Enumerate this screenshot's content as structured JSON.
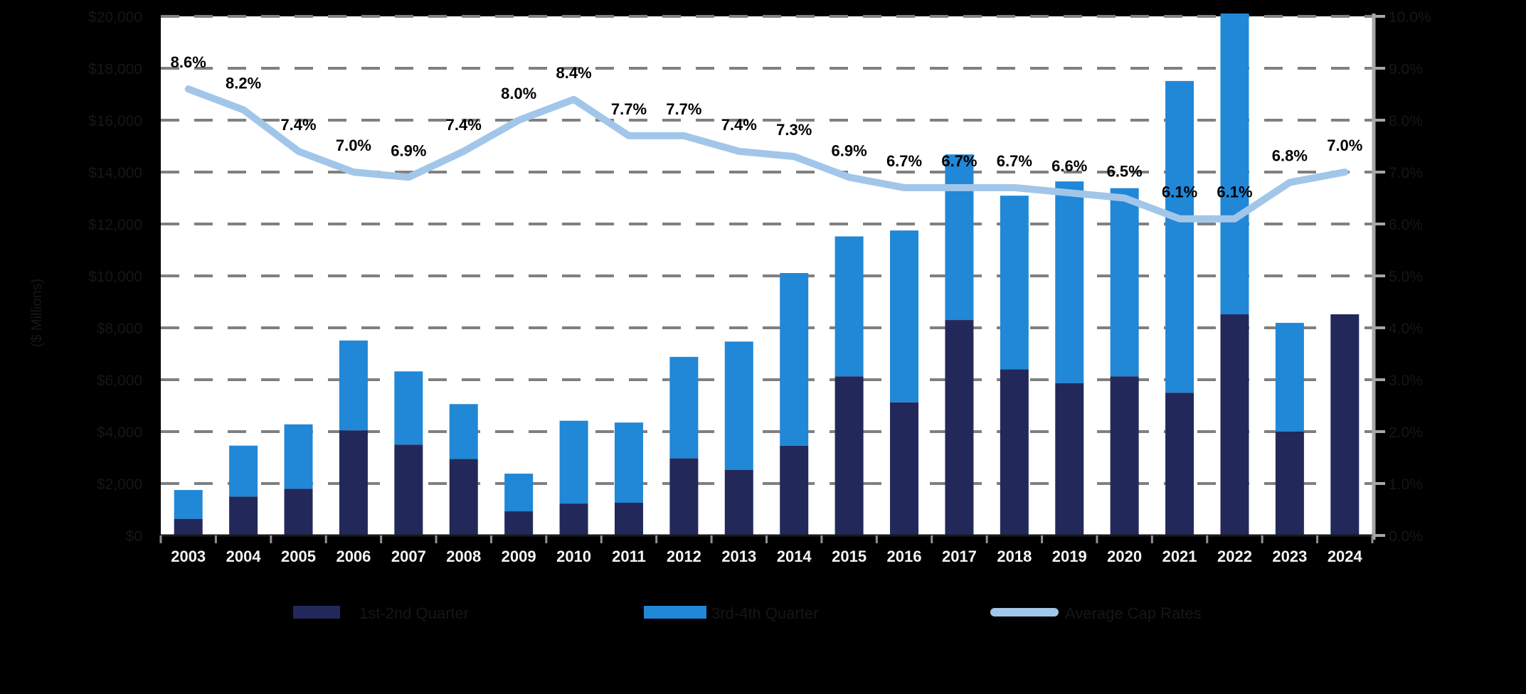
{
  "colors": {
    "page_bg": "#000000",
    "plot_bg": "#ffffff",
    "navy": "#22295a",
    "blue": "#2187d7",
    "light_blue": "#a2c6e9",
    "gridline": "#808080",
    "x_axis_line": "#1a1a1a",
    "right_axis_line": "#a6a6a6",
    "category_tick": "#909090",
    "year_label": "#f5f5f5",
    "data_label": "#000000",
    "muted_label": "#161616"
  },
  "chart_data": {
    "type": "bar+line",
    "title": "",
    "categories": [
      "2003",
      "2004",
      "2005",
      "2006",
      "2007",
      "2008",
      "2009",
      "2010",
      "2011",
      "2012",
      "2013",
      "2014",
      "2015",
      "2016",
      "2017",
      "2018",
      "2019",
      "2020",
      "2021",
      "2022",
      "2023",
      "2024"
    ],
    "series": [
      {
        "name": "1st-2nd Quarter",
        "type": "bar",
        "stack": "volume",
        "color_key": "navy",
        "values": [
          640,
          1500,
          1800,
          4050,
          3500,
          2950,
          930,
          1230,
          1260,
          2970,
          2530,
          3460,
          6130,
          5130,
          8300,
          6400,
          5870,
          6130,
          5500,
          8520,
          4000,
          8520
        ]
      },
      {
        "name": "3rd-4th Quarter",
        "type": "bar",
        "stack": "volume",
        "color_key": "blue",
        "values": [
          1110,
          1960,
          2480,
          3460,
          2820,
          2110,
          1450,
          3190,
          3090,
          3910,
          4940,
          6650,
          5390,
          6620,
          6380,
          6690,
          7770,
          7250,
          12010,
          11590,
          4190,
          0
        ]
      },
      {
        "name": "Average Cap Rates",
        "type": "line",
        "axis": "right",
        "color_key": "light_blue",
        "values": [
          8.6,
          8.2,
          7.4,
          7.0,
          6.9,
          7.4,
          8.0,
          8.4,
          7.7,
          7.7,
          7.4,
          7.3,
          6.9,
          6.7,
          6.7,
          6.7,
          6.6,
          6.5,
          6.1,
          6.1,
          6.8,
          7.0
        ],
        "labels": [
          "8.6%",
          "8.2%",
          "7.4%",
          "7.0%",
          "6.9%",
          "7.4%",
          "8.0%",
          "8.4%",
          "7.7%",
          "7.7%",
          "7.4%",
          "7.3%",
          "6.9%",
          "6.7%",
          "6.7%",
          "6.7%",
          "6.6%",
          "6.5%",
          "6.1%",
          "6.1%",
          "6.8%",
          "7.0%"
        ]
      }
    ],
    "left_axis": {
      "title": "($ Millions)",
      "min": 0,
      "max": 20000,
      "step": 2000,
      "tick_labels": [
        "$20,000",
        "$18,000",
        "$16,000",
        "$14,000",
        "$12,000",
        "$10,000",
        "$8,000",
        "$6,000",
        "$4,000",
        "$2,000",
        "$0"
      ]
    },
    "right_axis": {
      "min": 0,
      "max": 10,
      "step": 1,
      "tick_labels": [
        "10.0%",
        "9.0%",
        "8.0%",
        "7.0%",
        "6.0%",
        "5.0%",
        "4.0%",
        "3.0%",
        "2.0%",
        "1.0%",
        "0.0%"
      ]
    },
    "grid": "horizontal dashed",
    "xlabel": "",
    "ylabel": "($ Millions)"
  },
  "legend": {
    "items": [
      {
        "label": "1st-2nd Quarter",
        "marker": "rect",
        "color_key": "navy"
      },
      {
        "label": "3rd-4th Quarter",
        "marker": "rect",
        "color_key": "blue"
      },
      {
        "label": "Average Cap Rates",
        "marker": "line",
        "color_key": "light_blue"
      }
    ]
  }
}
